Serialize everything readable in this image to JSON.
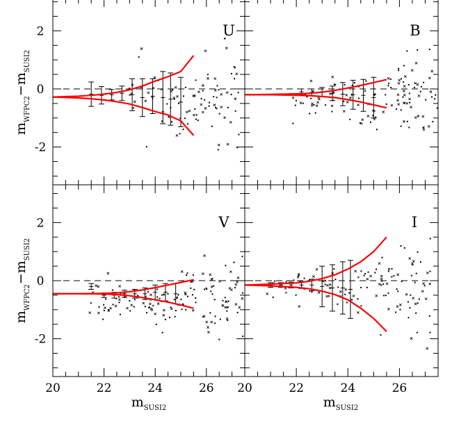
{
  "chart_data": [
    {
      "type": "scatter",
      "panel": "U",
      "label": "U",
      "ylabel": {
        "main": "m",
        "sub1": "WFPC2",
        "dash": "−m",
        "sub2": "SUSI2"
      },
      "xlabel": "",
      "xlim": [
        20,
        27.5
      ],
      "ylim": [
        -3.3,
        3.3
      ],
      "yticks": [
        "2",
        "0",
        "-2"
      ],
      "ytick_values": [
        2,
        0,
        -2
      ],
      "xticks": [],
      "zero_line": 0,
      "errorbars": [
        {
          "x": 21.5,
          "y": -0.18,
          "err": 0.42
        },
        {
          "x": 21.9,
          "y": -0.22,
          "err": 0.3
        },
        {
          "x": 22.3,
          "y": -0.2,
          "err": 0.18
        },
        {
          "x": 22.7,
          "y": -0.15,
          "err": 0.25
        },
        {
          "x": 23.1,
          "y": -0.2,
          "err": 0.55
        },
        {
          "x": 23.5,
          "y": -0.3,
          "err": 0.65
        },
        {
          "x": 23.9,
          "y": -0.25,
          "err": 0.6
        },
        {
          "x": 24.3,
          "y": -0.3,
          "err": 0.9
        },
        {
          "x": 24.6,
          "y": -0.35,
          "err": 0.9
        },
        {
          "x": 25.0,
          "y": -0.45,
          "err": 0.85
        }
      ],
      "envelope": {
        "x": [
          20,
          21,
          21.5,
          22,
          22.5,
          23,
          23.5,
          24,
          24.5,
          25,
          25.5
        ],
        "upper": [
          -0.28,
          -0.25,
          -0.22,
          -0.18,
          -0.12,
          -0.03,
          0.1,
          0.27,
          0.42,
          0.6,
          1.15
        ],
        "lower": [
          -0.28,
          -0.31,
          -0.34,
          -0.38,
          -0.44,
          -0.52,
          -0.64,
          -0.78,
          -0.9,
          -1.1,
          -1.6
        ]
      },
      "points": {
        "count": 95,
        "x_range": [
          22.5,
          27.3
        ],
        "center": -0.35,
        "spread": 0.6,
        "spread_growth": 0.35,
        "seed": 11
      }
    },
    {
      "type": "scatter",
      "panel": "B",
      "label": "B",
      "xlim": [
        20,
        27.5
      ],
      "ylim": [
        -3.3,
        3.3
      ],
      "yticks": [],
      "xticks": [],
      "zero_line": 0,
      "errorbars": [
        {
          "x": 22.2,
          "y": -0.1,
          "err": 0.1
        },
        {
          "x": 22.6,
          "y": -0.12,
          "err": 0.12
        },
        {
          "x": 23.0,
          "y": -0.1,
          "err": 0.15
        },
        {
          "x": 23.4,
          "y": -0.15,
          "err": 0.25
        },
        {
          "x": 23.8,
          "y": -0.18,
          "err": 0.4
        },
        {
          "x": 24.2,
          "y": -0.2,
          "err": 0.5
        },
        {
          "x": 24.6,
          "y": -0.22,
          "err": 0.55
        },
        {
          "x": 25.0,
          "y": -0.3,
          "err": 0.7
        }
      ],
      "envelope": {
        "x": [
          20,
          21,
          22,
          22.5,
          23,
          23.5,
          24,
          24.5,
          25,
          25.5
        ],
        "upper": [
          -0.2,
          -0.19,
          -0.17,
          -0.15,
          -0.11,
          -0.05,
          0.03,
          0.12,
          0.22,
          0.32
        ],
        "lower": [
          -0.2,
          -0.2,
          -0.22,
          -0.23,
          -0.26,
          -0.3,
          -0.37,
          -0.45,
          -0.55,
          -0.65
        ]
      },
      "points": {
        "count": 130,
        "x_range": [
          21.5,
          27.5
        ],
        "center": -0.45,
        "spread": 0.5,
        "spread_growth": 0.3,
        "seed": 23
      }
    },
    {
      "type": "scatter",
      "panel": "V",
      "label": "V",
      "ylabel": {
        "main": "m",
        "sub1": "WFPC2",
        "dash": "−m",
        "sub2": "SUSI2"
      },
      "xlabel": {
        "main": "m",
        "sub": "SUSI2"
      },
      "xlim": [
        20,
        27.5
      ],
      "ylim": [
        -3.3,
        3.3
      ],
      "yticks": [
        "2",
        "0",
        "-2"
      ],
      "ytick_values": [
        2,
        0,
        -2
      ],
      "xticks": [
        "20",
        "22",
        "24",
        "26"
      ],
      "xtick_values": [
        20,
        22,
        24,
        26
      ],
      "zero_line": 0,
      "errorbars": [
        {
          "x": 21.5,
          "y": -0.2,
          "err": 0.1
        },
        {
          "x": 22.0,
          "y": -0.5,
          "err": 0.08
        },
        {
          "x": 22.4,
          "y": -0.5,
          "err": 0.1
        },
        {
          "x": 22.8,
          "y": -0.45,
          "err": 0.12
        },
        {
          "x": 23.2,
          "y": -0.45,
          "err": 0.15
        },
        {
          "x": 23.6,
          "y": -0.45,
          "err": 0.2
        },
        {
          "x": 24.0,
          "y": -0.4,
          "err": 0.25
        },
        {
          "x": 24.4,
          "y": -0.4,
          "err": 0.3
        },
        {
          "x": 24.8,
          "y": -0.45,
          "err": 0.35
        }
      ],
      "envelope": {
        "x": [
          20,
          21,
          22,
          22.5,
          23,
          23.5,
          24,
          24.5,
          25,
          25.5
        ],
        "upper": [
          -0.45,
          -0.45,
          -0.44,
          -0.42,
          -0.38,
          -0.32,
          -0.24,
          -0.15,
          -0.06,
          0.03
        ],
        "lower": [
          -0.45,
          -0.45,
          -0.46,
          -0.48,
          -0.52,
          -0.58,
          -0.66,
          -0.74,
          -0.84,
          -0.95
        ]
      },
      "points": {
        "count": 150,
        "x_range": [
          21.0,
          27.5
        ],
        "center": -0.7,
        "spread": 0.45,
        "spread_growth": 0.3,
        "seed": 37
      }
    },
    {
      "type": "scatter",
      "panel": "I",
      "label": "I",
      "xlabel": {
        "main": "m",
        "sub": "SUSI2"
      },
      "xlim": [
        20,
        27.5
      ],
      "ylim": [
        -3.3,
        3.3
      ],
      "yticks": [],
      "xticks": [
        "20",
        "22",
        "24",
        "26"
      ],
      "xtick_values": [
        20,
        22,
        24,
        26
      ],
      "zero_line": 0,
      "errorbars": [
        {
          "x": 21.0,
          "y": -0.15,
          "err": 0.08
        },
        {
          "x": 21.4,
          "y": -0.15,
          "err": 0.08
        },
        {
          "x": 21.8,
          "y": -0.15,
          "err": 0.1
        },
        {
          "x": 22.2,
          "y": -0.15,
          "err": 0.12
        },
        {
          "x": 22.6,
          "y": -0.15,
          "err": 0.2
        },
        {
          "x": 23.0,
          "y": -0.2,
          "err": 0.7
        },
        {
          "x": 23.4,
          "y": -0.25,
          "err": 0.8
        },
        {
          "x": 23.8,
          "y": -0.25,
          "err": 0.9
        },
        {
          "x": 24.1,
          "y": -0.3,
          "err": 1.0
        }
      ],
      "envelope": {
        "x": [
          20,
          21,
          22,
          22.5,
          23,
          23.5,
          24,
          24.5,
          25,
          25.5
        ],
        "upper": [
          -0.15,
          -0.12,
          -0.08,
          -0.02,
          0.07,
          0.2,
          0.4,
          0.65,
          1.0,
          1.5
        ],
        "lower": [
          -0.15,
          -0.18,
          -0.23,
          -0.28,
          -0.36,
          -0.48,
          -0.66,
          -0.95,
          -1.3,
          -1.75
        ]
      },
      "points": {
        "count": 120,
        "x_range": [
          20.5,
          27.2
        ],
        "center": -0.25,
        "spread": 0.45,
        "spread_growth": 0.45,
        "seed": 53
      }
    }
  ]
}
